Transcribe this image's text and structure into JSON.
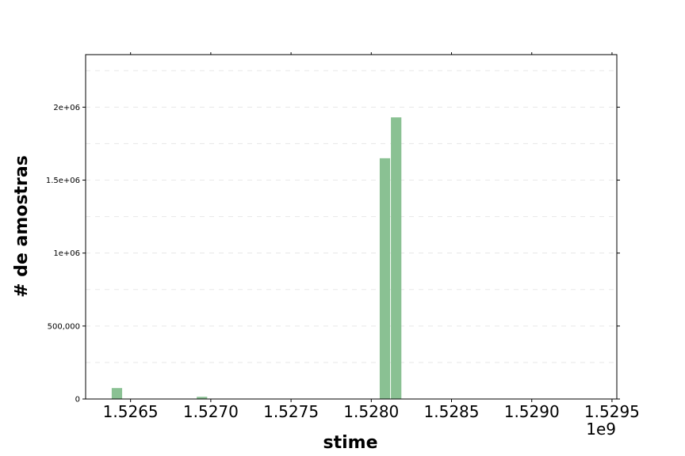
{
  "chart_data": {
    "type": "bar",
    "title": "",
    "xlabel": "stime",
    "ylabel": "# de amostras",
    "x_offset_label": "1e9",
    "xlim": [
      1.52622,
      1.52953
    ],
    "ylim": [
      0,
      2360000
    ],
    "grid": true,
    "bar_color": "#8ac193",
    "x_ticks": [
      {
        "value": 1.5265,
        "label": "1.5265"
      },
      {
        "value": 1.527,
        "label": "1.5270"
      },
      {
        "value": 1.5275,
        "label": "1.5275"
      },
      {
        "value": 1.528,
        "label": "1.5280"
      },
      {
        "value": 1.5285,
        "label": "1.5285"
      },
      {
        "value": 1.529,
        "label": "1.5290"
      },
      {
        "value": 1.5295,
        "label": "1.5295"
      }
    ],
    "y_ticks": [
      {
        "value": 0,
        "label": "0"
      },
      {
        "value": 500000,
        "label": "500,000"
      },
      {
        "value": 1000000,
        "label": "1e+06"
      },
      {
        "value": 1500000,
        "label": "1.5e+06"
      },
      {
        "value": 2000000,
        "label": "2e+06"
      }
    ],
    "bars": [
      {
        "x0": 1.52638,
        "x1": 1.52645,
        "value": 75000
      },
      {
        "x0": 1.52691,
        "x1": 1.52698,
        "value": 15000
      },
      {
        "x0": 1.52805,
        "x1": 1.52812,
        "value": 1650000
      },
      {
        "x0": 1.52812,
        "x1": 1.52819,
        "value": 1930000
      }
    ]
  }
}
